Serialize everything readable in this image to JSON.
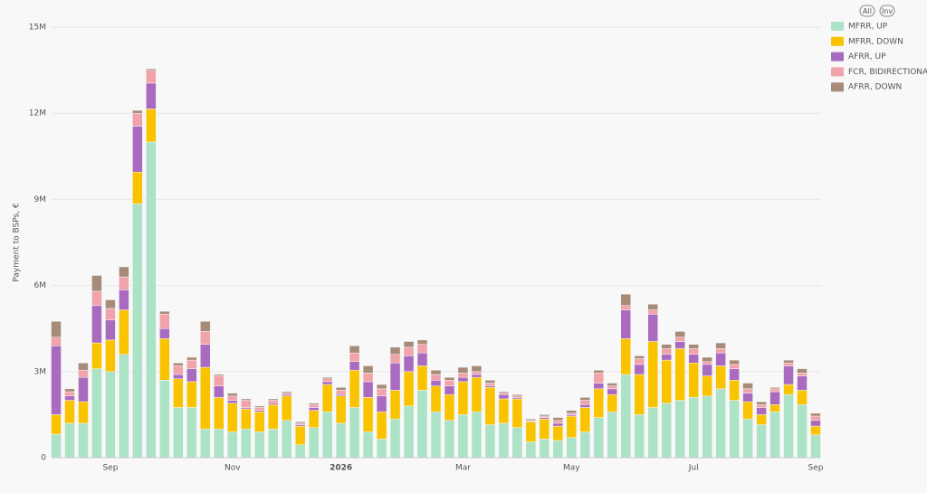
{
  "chart_data": {
    "type": "stacked-bar",
    "y_label": "Payment to BSPs, €",
    "buttons": [
      "All",
      "Inv"
    ],
    "categories": [
      null,
      null,
      null,
      null,
      "Sep",
      null,
      null,
      null,
      null,
      null,
      null,
      null,
      null,
      "Nov",
      null,
      null,
      null,
      null,
      null,
      null,
      null,
      "2026",
      null,
      null,
      null,
      null,
      null,
      null,
      null,
      null,
      "Mar",
      null,
      null,
      null,
      null,
      null,
      null,
      null,
      "May",
      null,
      null,
      null,
      null,
      null,
      null,
      null,
      null,
      "Jul",
      null,
      null,
      null,
      null,
      null,
      null,
      null,
      null,
      "Sep"
    ],
    "ylim": [
      0,
      15000000
    ],
    "yticks": [
      0,
      {
        "value": 3000000,
        "label": "3M"
      },
      {
        "value": 6000000,
        "label": "6M"
      },
      {
        "value": 9000000,
        "label": "9M"
      },
      {
        "value": 12000000,
        "label": "12M"
      },
      {
        "value": 15000000,
        "label": "15M"
      }
    ],
    "grid": true,
    "legend": "right",
    "series": [
      {
        "name": "MFRR, UP",
        "color": "#ace2c6",
        "values": [
          820000,
          1200000,
          1200000,
          3100000,
          3000000,
          3600000,
          8850000,
          11000000,
          2700000,
          1750000,
          1750000,
          1000000,
          1000000,
          900000,
          1000000,
          900000,
          1000000,
          1300000,
          450000,
          1050000,
          1600000,
          1200000,
          1750000,
          900000,
          650000,
          1350000,
          1800000,
          2350000,
          1600000,
          1300000,
          1500000,
          1600000,
          1150000,
          1200000,
          1050000,
          550000,
          650000,
          600000,
          700000,
          900000,
          1400000,
          1600000,
          2900000,
          1500000,
          1750000,
          1900000,
          2000000,
          2100000,
          2150000,
          2400000,
          2000000,
          1350000,
          1150000,
          1600000,
          2200000,
          1850000,
          800000
        ]
      },
      {
        "name": "MFRR, DOWN",
        "color": "#f9c300",
        "values": [
          680000,
          800000,
          750000,
          900000,
          1100000,
          1550000,
          1100000,
          1150000,
          1450000,
          1000000,
          900000,
          2150000,
          1100000,
          1000000,
          700000,
          700000,
          850000,
          850000,
          650000,
          600000,
          950000,
          950000,
          1300000,
          1200000,
          950000,
          1000000,
          1200000,
          850000,
          900000,
          900000,
          1150000,
          1200000,
          1300000,
          850000,
          1000000,
          700000,
          700000,
          500000,
          750000,
          850000,
          1000000,
          600000,
          1250000,
          1400000,
          2300000,
          1500000,
          1800000,
          1200000,
          700000,
          800000,
          700000,
          600000,
          350000,
          250000,
          350000,
          500000,
          300000
        ]
      },
      {
        "name": "AFRR, UP",
        "color": "#a96bbf",
        "values": [
          2400000,
          150000,
          850000,
          1300000,
          700000,
          700000,
          1600000,
          900000,
          350000,
          150000,
          450000,
          800000,
          400000,
          100000,
          50000,
          50000,
          50000,
          50000,
          50000,
          100000,
          100000,
          50000,
          300000,
          550000,
          550000,
          950000,
          550000,
          450000,
          200000,
          300000,
          150000,
          100000,
          50000,
          150000,
          50000,
          20000,
          50000,
          100000,
          50000,
          100000,
          200000,
          200000,
          1000000,
          350000,
          950000,
          200000,
          250000,
          300000,
          400000,
          450000,
          400000,
          300000,
          250000,
          450000,
          650000,
          500000,
          200000
        ]
      },
      {
        "name": "FCR, BIDIRECTIONAL",
        "color": "#f0a3ab",
        "values": [
          300000,
          150000,
          250000,
          500000,
          400000,
          450000,
          450000,
          450000,
          500000,
          300000,
          300000,
          450000,
          350000,
          150000,
          250000,
          100000,
          100000,
          50000,
          50000,
          100000,
          100000,
          150000,
          300000,
          300000,
          250000,
          300000,
          300000,
          300000,
          200000,
          200000,
          150000,
          100000,
          100000,
          50000,
          50000,
          30000,
          50000,
          100000,
          50000,
          150000,
          350000,
          100000,
          150000,
          200000,
          150000,
          200000,
          150000,
          200000,
          100000,
          150000,
          150000,
          150000,
          100000,
          100000,
          100000,
          100000,
          150000
        ]
      },
      {
        "name": "AFRR, DOWN",
        "color": "#a68b79",
        "values": [
          550000,
          100000,
          250000,
          550000,
          300000,
          350000,
          100000,
          50000,
          100000,
          100000,
          100000,
          350000,
          50000,
          100000,
          50000,
          50000,
          50000,
          50000,
          50000,
          50000,
          50000,
          100000,
          250000,
          250000,
          150000,
          250000,
          200000,
          150000,
          150000,
          100000,
          200000,
          200000,
          100000,
          50000,
          50000,
          50000,
          50000,
          100000,
          100000,
          100000,
          100000,
          100000,
          400000,
          100000,
          200000,
          150000,
          200000,
          150000,
          150000,
          200000,
          150000,
          200000,
          100000,
          50000,
          100000,
          150000,
          100000
        ]
      }
    ]
  }
}
